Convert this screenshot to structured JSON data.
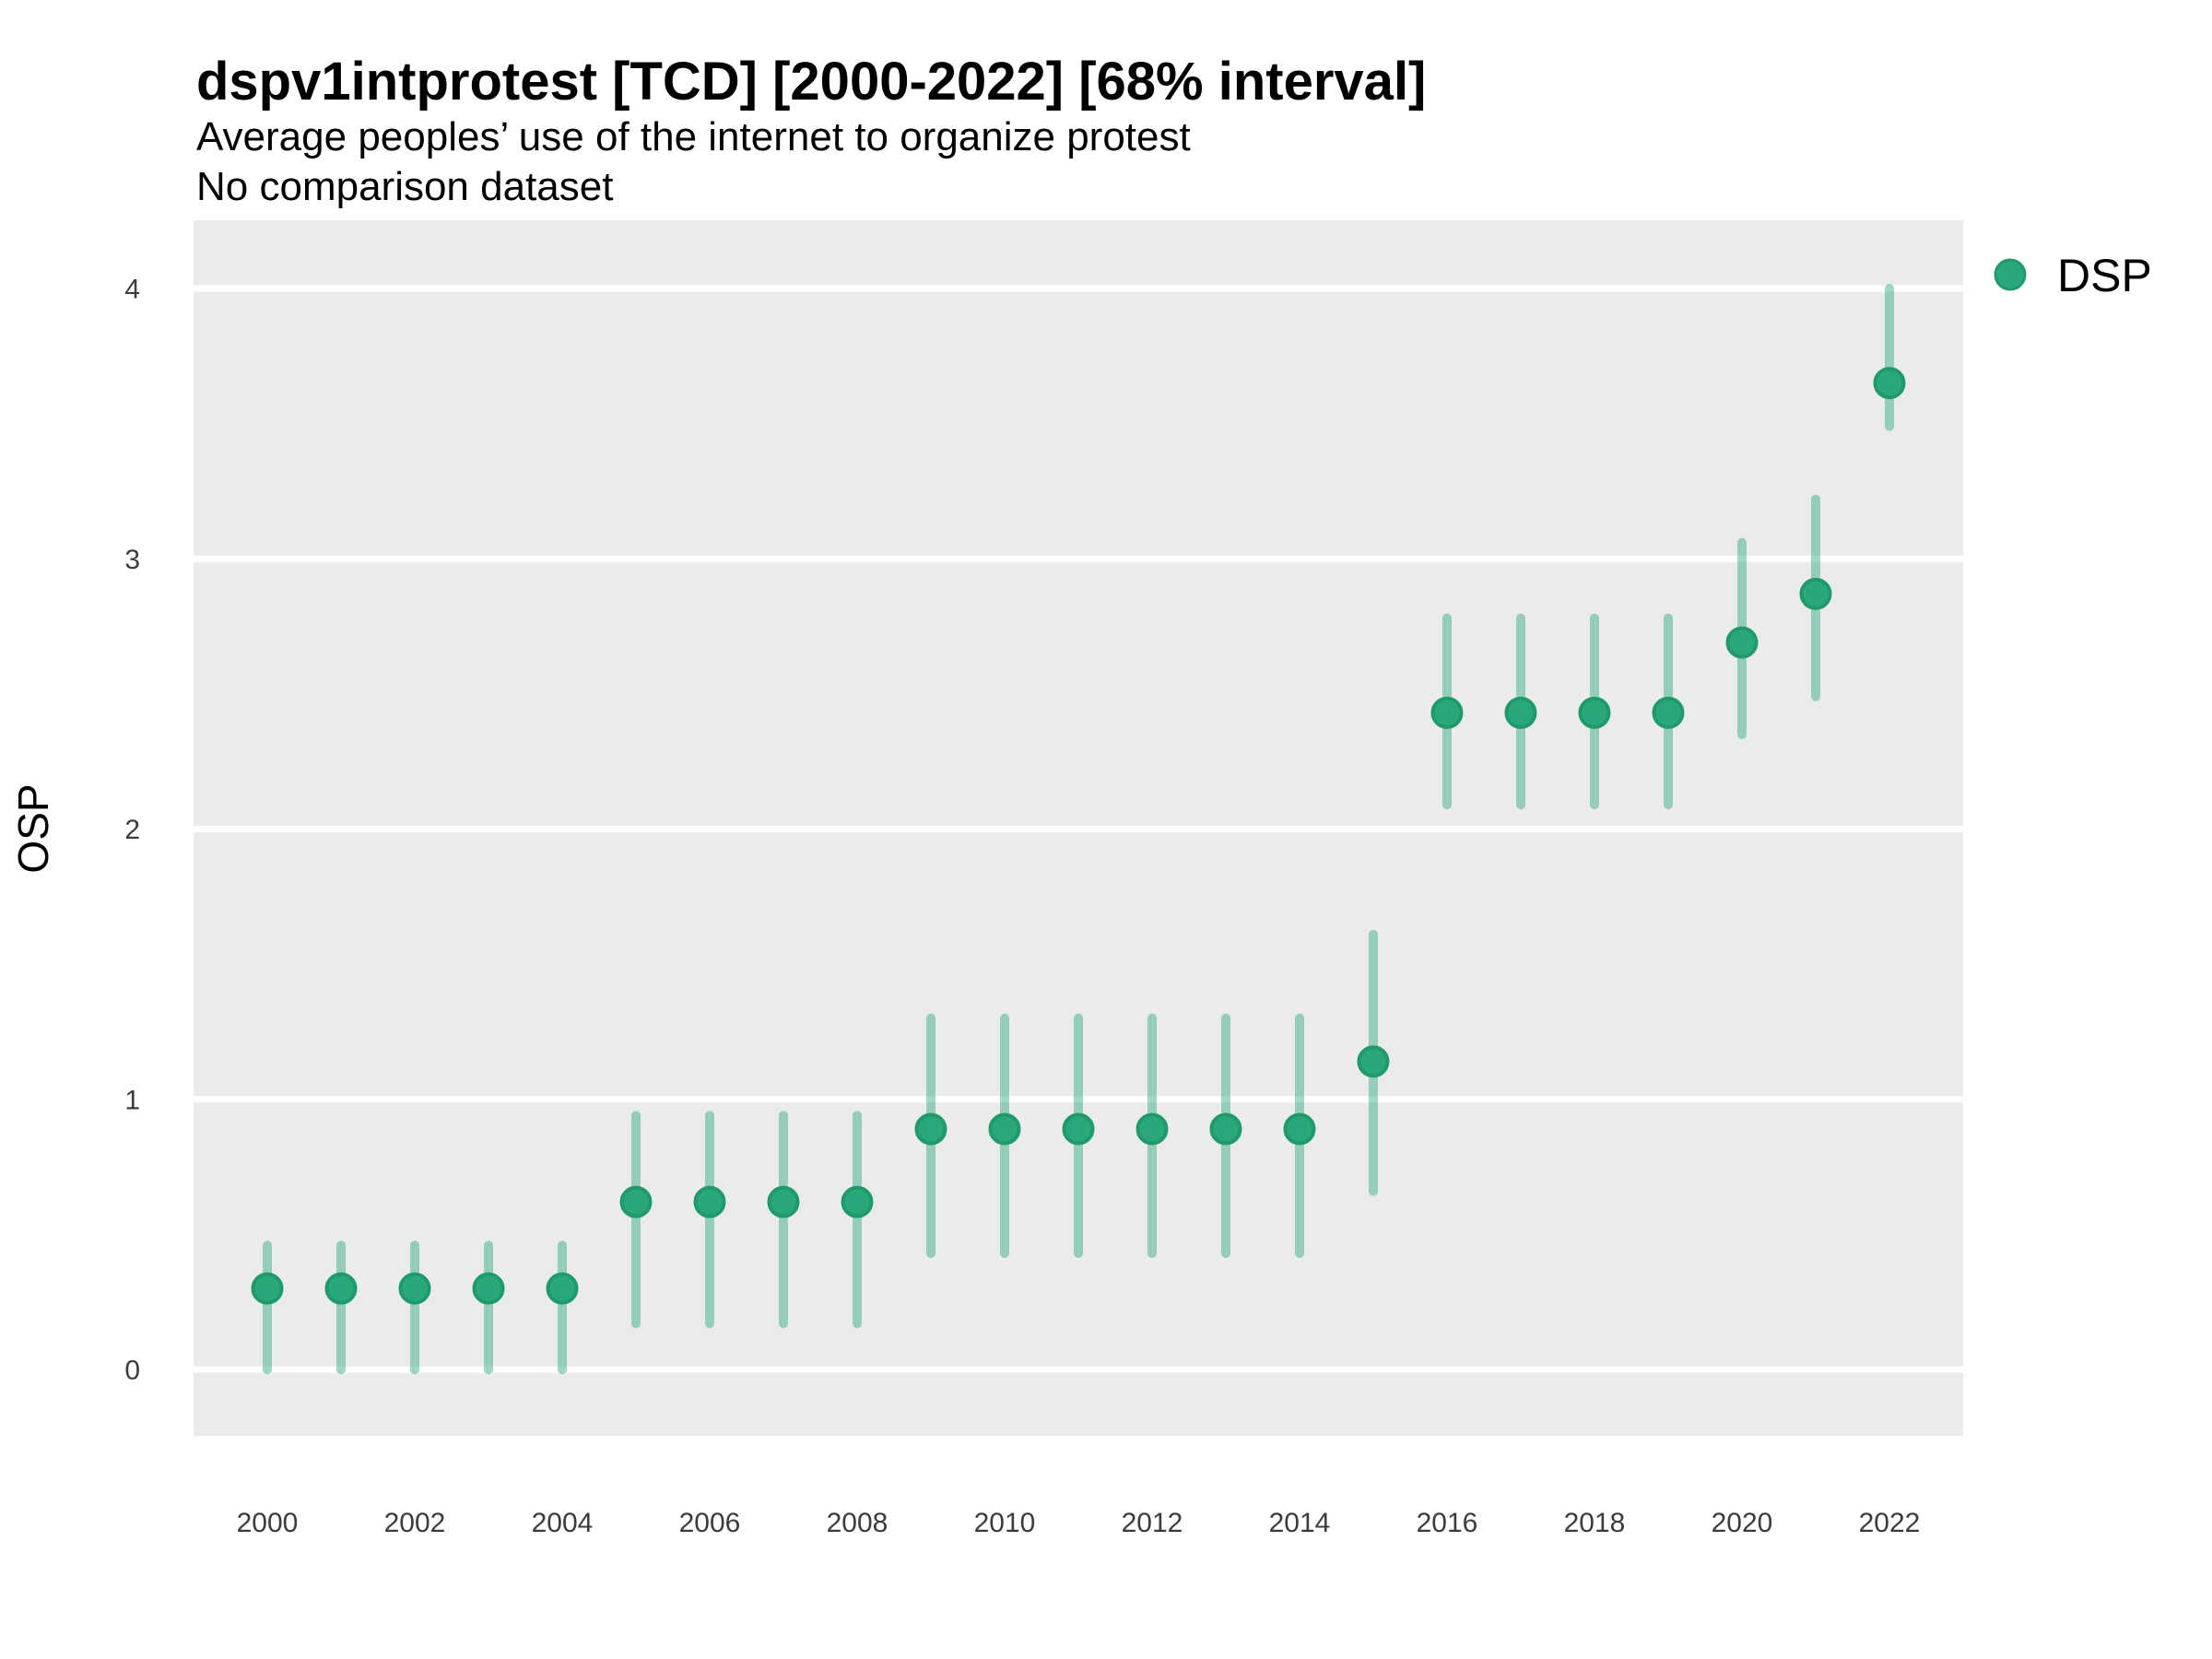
{
  "header": {
    "title": "dspv1intprotest [TCD] [2000-2022] [68% interval]",
    "subtitle_line1": "Average peoples’ use of the internet to organize protest",
    "subtitle_line2": "No comparison dataset"
  },
  "legend": {
    "label": "DSP",
    "marker": "circle-icon",
    "position": "right-top"
  },
  "colors": {
    "point_fill": "#2BA87B",
    "point_stroke": "#1F9A6C",
    "interval_bar": "rgba(42,168,122,0.45)",
    "panel_background": "#EBEBEB",
    "gridline": "#FFFFFF",
    "tick_text": "#3C3C3C",
    "text": "#000000"
  },
  "chart_data": {
    "type": "scatter",
    "title": "dspv1intprotest [TCD] [2000-2022] [68% interval]",
    "subtitle": [
      "Average peoples’ use of the internet to organize protest",
      "No comparison dataset"
    ],
    "xlabel": "",
    "ylabel": "OSP",
    "interval": "68%",
    "grid": "horizontal-major-only",
    "legend_position": "right-top",
    "xlim": [
      1999,
      2023
    ],
    "ylim": [
      -0.25,
      4.25
    ],
    "x_ticks": [
      2000,
      2002,
      2004,
      2006,
      2008,
      2010,
      2012,
      2014,
      2016,
      2018,
      2020,
      2022
    ],
    "y_ticks": [
      0,
      1,
      2,
      3,
      4
    ],
    "series": [
      {
        "name": "DSP",
        "color": "#2BA87B",
        "points": [
          {
            "year": 2000,
            "value": 0.3,
            "low": 0.0,
            "high": 0.46
          },
          {
            "year": 2001,
            "value": 0.3,
            "low": 0.0,
            "high": 0.46
          },
          {
            "year": 2002,
            "value": 0.3,
            "low": 0.0,
            "high": 0.46
          },
          {
            "year": 2003,
            "value": 0.3,
            "low": 0.0,
            "high": 0.46
          },
          {
            "year": 2004,
            "value": 0.3,
            "low": 0.0,
            "high": 0.46
          },
          {
            "year": 2005,
            "value": 0.62,
            "low": 0.17,
            "high": 0.94
          },
          {
            "year": 2006,
            "value": 0.62,
            "low": 0.17,
            "high": 0.94
          },
          {
            "year": 2007,
            "value": 0.62,
            "low": 0.17,
            "high": 0.94
          },
          {
            "year": 2008,
            "value": 0.62,
            "low": 0.17,
            "high": 0.94
          },
          {
            "year": 2009,
            "value": 0.89,
            "low": 0.43,
            "high": 1.3
          },
          {
            "year": 2010,
            "value": 0.89,
            "low": 0.43,
            "high": 1.3
          },
          {
            "year": 2011,
            "value": 0.89,
            "low": 0.43,
            "high": 1.3
          },
          {
            "year": 2012,
            "value": 0.89,
            "low": 0.43,
            "high": 1.3
          },
          {
            "year": 2013,
            "value": 0.89,
            "low": 0.43,
            "high": 1.3
          },
          {
            "year": 2014,
            "value": 0.89,
            "low": 0.43,
            "high": 1.3
          },
          {
            "year": 2015,
            "value": 1.14,
            "low": 0.66,
            "high": 1.61
          },
          {
            "year": 2016,
            "value": 2.43,
            "low": 2.09,
            "high": 2.78
          },
          {
            "year": 2017,
            "value": 2.43,
            "low": 2.09,
            "high": 2.78
          },
          {
            "year": 2018,
            "value": 2.43,
            "low": 2.09,
            "high": 2.78
          },
          {
            "year": 2019,
            "value": 2.43,
            "low": 2.09,
            "high": 2.78
          },
          {
            "year": 2020,
            "value": 2.69,
            "low": 2.35,
            "high": 3.06
          },
          {
            "year": 2021,
            "value": 2.87,
            "low": 2.49,
            "high": 3.22
          },
          {
            "year": 2022,
            "value": 3.65,
            "low": 3.49,
            "high": 4.0
          }
        ]
      }
    ]
  }
}
